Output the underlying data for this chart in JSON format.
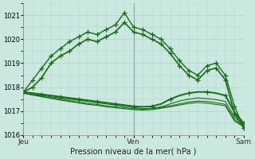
{
  "title": "Pression niveau de la mer( hPa )",
  "bg_color": "#cbe8e0",
  "grid_color": "#a8d4cc",
  "line_color": "#1a6b1a",
  "ylim": [
    1016,
    1021.5
  ],
  "yticks": [
    1016,
    1017,
    1018,
    1019,
    1020,
    1021
  ],
  "xtick_labels": [
    "Jeu",
    "Ven",
    "Sam"
  ],
  "xtick_positions": [
    0,
    0.5,
    1.0
  ],
  "series": [
    [
      1017.8,
      1018.3,
      1018.8,
      1019.3,
      1019.6,
      1019.9,
      1020.1,
      1020.3,
      1020.2,
      1020.4,
      1020.6,
      1021.1,
      1020.5,
      1020.4,
      1020.2,
      1020.0,
      1019.6,
      1019.1,
      1018.7,
      1018.5,
      1018.9,
      1019.0,
      1018.5,
      1017.2,
      1016.3
    ],
    [
      1017.8,
      1018.0,
      1018.4,
      1019.0,
      1019.3,
      1019.5,
      1019.8,
      1020.0,
      1019.9,
      1020.1,
      1020.3,
      1020.7,
      1020.3,
      1020.2,
      1020.0,
      1019.8,
      1019.4,
      1018.9,
      1018.5,
      1018.3,
      1018.7,
      1018.8,
      1018.3,
      1016.9,
      1016.3
    ],
    [
      1017.8,
      1017.75,
      1017.7,
      1017.65,
      1017.6,
      1017.55,
      1017.5,
      1017.45,
      1017.4,
      1017.35,
      1017.3,
      1017.25,
      1017.2,
      1017.18,
      1017.2,
      1017.3,
      1017.5,
      1017.65,
      1017.75,
      1017.8,
      1017.8,
      1017.75,
      1017.65,
      1016.95,
      1016.5
    ],
    [
      1017.75,
      1017.7,
      1017.65,
      1017.6,
      1017.55,
      1017.5,
      1017.45,
      1017.4,
      1017.35,
      1017.3,
      1017.25,
      1017.2,
      1017.15,
      1017.1,
      1017.12,
      1017.18,
      1017.3,
      1017.42,
      1017.5,
      1017.55,
      1017.52,
      1017.48,
      1017.4,
      1016.75,
      1016.42
    ],
    [
      1017.75,
      1017.68,
      1017.62,
      1017.56,
      1017.5,
      1017.44,
      1017.38,
      1017.32,
      1017.28,
      1017.22,
      1017.18,
      1017.14,
      1017.1,
      1017.08,
      1017.1,
      1017.15,
      1017.22,
      1017.3,
      1017.38,
      1017.42,
      1017.4,
      1017.35,
      1017.28,
      1016.65,
      1016.38
    ],
    [
      1017.75,
      1017.67,
      1017.6,
      1017.53,
      1017.46,
      1017.4,
      1017.34,
      1017.28,
      1017.24,
      1017.18,
      1017.14,
      1017.1,
      1017.06,
      1017.04,
      1017.06,
      1017.12,
      1017.18,
      1017.25,
      1017.32,
      1017.36,
      1017.33,
      1017.28,
      1017.22,
      1016.58,
      1016.35
    ]
  ],
  "has_markers": [
    true,
    true,
    true,
    false,
    false,
    false
  ],
  "linewidths": [
    1.0,
    1.2,
    1.4,
    0.8,
    0.8,
    0.8
  ],
  "marker_every": [
    1,
    1,
    2,
    1,
    1,
    1
  ]
}
